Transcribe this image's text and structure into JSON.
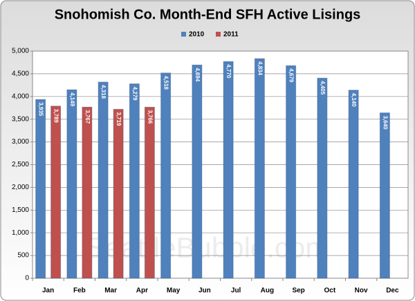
{
  "chart_data": {
    "type": "bar",
    "title": "Snohomish Co. Month-End SFH Active Lisings",
    "watermark": "SeattleBubble.com",
    "categories": [
      "Jan",
      "Feb",
      "Mar",
      "Apr",
      "May",
      "Jun",
      "Jul",
      "Aug",
      "Sep",
      "Oct",
      "Nov",
      "Dec"
    ],
    "series": [
      {
        "name": "2010",
        "color": "#4f81bd",
        "values": [
          3935,
          4149,
          4318,
          4279,
          4518,
          4694,
          4770,
          4834,
          4679,
          4405,
          4140,
          3640
        ],
        "value_labels": [
          "3,935",
          "4,149",
          "4,318",
          "4,279",
          "4,518",
          "4,694",
          "4,770",
          "4,834",
          "4,679",
          "4,405",
          "4,140",
          "3,640"
        ]
      },
      {
        "name": "2011",
        "color": "#c0504d",
        "values": [
          3789,
          3767,
          3719,
          3766,
          null,
          null,
          null,
          null,
          null,
          null,
          null,
          null
        ],
        "value_labels": [
          "3,789",
          "3,767",
          "3,719",
          "3,766",
          null,
          null,
          null,
          null,
          null,
          null,
          null,
          null
        ]
      }
    ],
    "ylim": [
      0,
      5000
    ],
    "yticks": [
      0,
      500,
      {
        "value": 1000,
        "label": "1,000"
      },
      {
        "value": 1500,
        "label": "1,500"
      },
      {
        "value": 2000,
        "label": "2,000"
      },
      {
        "value": 2500,
        "label": "2,500"
      },
      {
        "value": 3000,
        "label": "3,000"
      },
      {
        "value": 3500,
        "label": "3,500"
      },
      {
        "value": 4000,
        "label": "4,000"
      },
      {
        "value": 4500,
        "label": "4,500"
      },
      {
        "value": 5000,
        "label": "5,000"
      }
    ],
    "grid": true,
    "legend": "top"
  }
}
